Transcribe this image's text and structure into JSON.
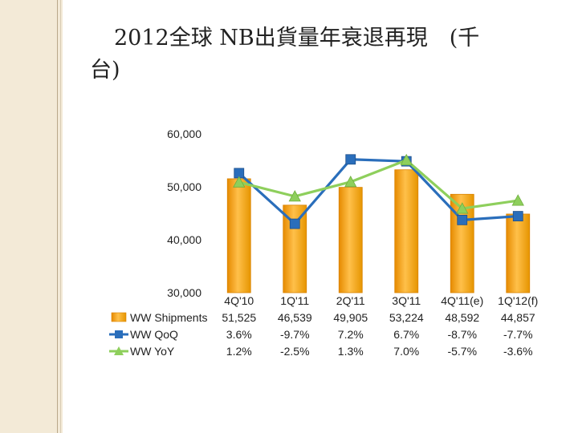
{
  "slide": {
    "title_line1": "2012全球 NB出貨量年衰退再現　(千",
    "title_line2": "台)"
  },
  "chart_data": {
    "type": "bar",
    "categories": [
      "4Q'10",
      "1Q'11",
      "2Q'11",
      "3Q'11",
      "4Q'11(e)",
      "1Q'12(f)"
    ],
    "ylim": [
      30000,
      60000
    ],
    "yticks": [
      "60,000",
      "50,000",
      "40,000",
      "30,000"
    ],
    "grid": false,
    "series": [
      {
        "name": "WW Shipments",
        "kind": "bar",
        "color": "#f5a31a",
        "values": [
          51525,
          46539,
          49905,
          53224,
          48592,
          44857
        ],
        "table_values": [
          "51,525",
          "46,539",
          "49,905",
          "53,224",
          "48,592",
          "44,857"
        ]
      },
      {
        "name": "WW QoQ",
        "kind": "line",
        "color": "#2a6ebb",
        "marker": "square",
        "values": [
          3.6,
          -9.7,
          7.2,
          6.7,
          -8.7,
          -7.7
        ],
        "table_values": [
          "3.6%",
          "-9.7%",
          "7.2%",
          "6.7%",
          "-8.7%",
          "-7.7%"
        ]
      },
      {
        "name": "WW YoY",
        "kind": "line",
        "color": "#8ecf5c",
        "marker": "triangle",
        "values": [
          1.2,
          -2.5,
          1.3,
          7.0,
          -5.7,
          -3.6
        ],
        "table_values": [
          "1.2%",
          "-2.5%",
          "1.3%",
          "7.0%",
          "-5.7%",
          "-3.6%"
        ]
      }
    ]
  }
}
